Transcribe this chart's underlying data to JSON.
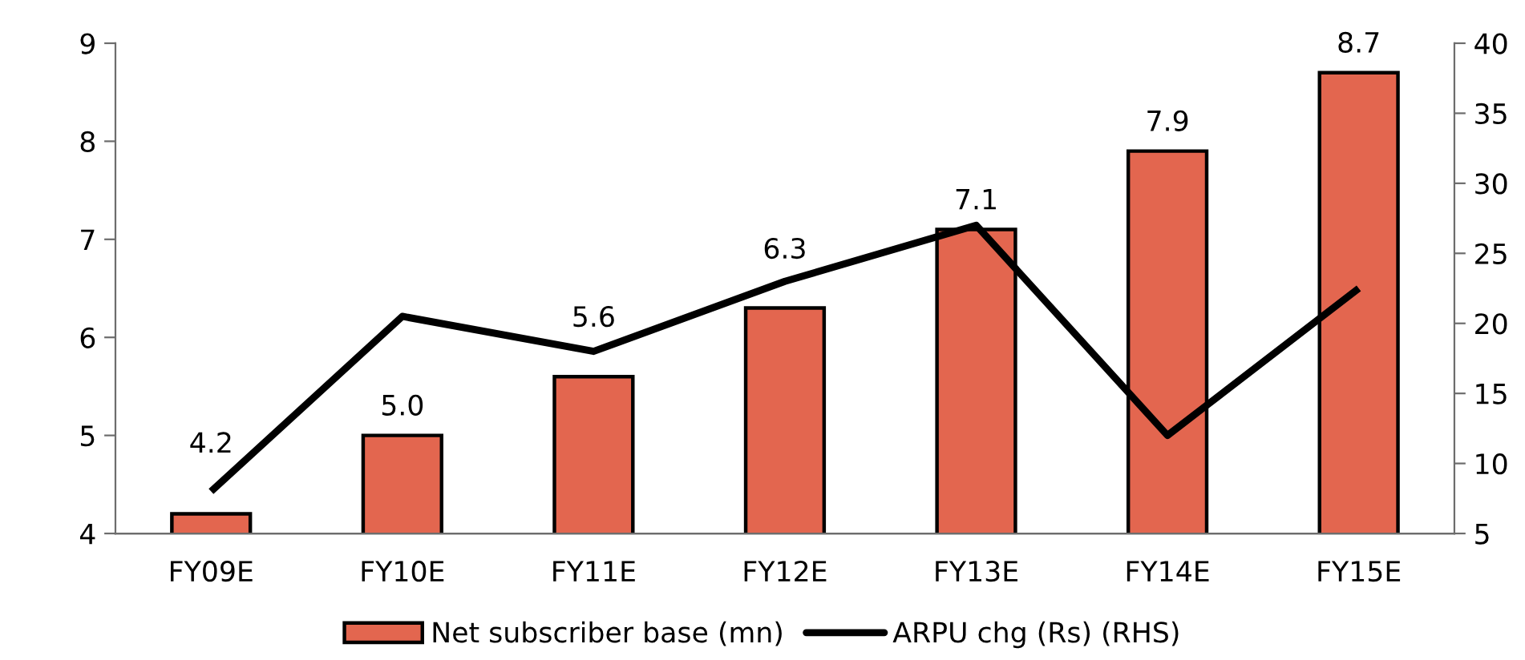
{
  "chart_data": {
    "type": "bar",
    "categories": [
      "FY09E",
      "FY10E",
      "FY11E",
      "FY12E",
      "FY13E",
      "FY14E",
      "FY15E"
    ],
    "series": [
      {
        "name": "Net subscriber base (mn)",
        "color": "#e3664f",
        "values": [
          4.2,
          5.0,
          5.6,
          6.3,
          7.1,
          7.9,
          8.7
        ],
        "value_labels": [
          "4.2",
          "5.0",
          "5.6",
          "6.3",
          "7.1",
          "7.9",
          "8.7"
        ]
      },
      {
        "name": "ARPU chg (Rs) (RHS)",
        "type": "line",
        "axis": "y2",
        "color": "#000000",
        "values": [
          8,
          20.5,
          18,
          23,
          27,
          12,
          22.5
        ],
        "marker": "none",
        "line_style": "solid"
      }
    ],
    "ylim": [
      4,
      9
    ],
    "yticks": [
      4,
      5,
      6,
      7,
      8,
      9
    ],
    "y2lim": [
      5,
      40
    ],
    "y2ticks": [
      5,
      10,
      15,
      20,
      25,
      30,
      35,
      40
    ],
    "legend": "bottom",
    "grid": false
  }
}
